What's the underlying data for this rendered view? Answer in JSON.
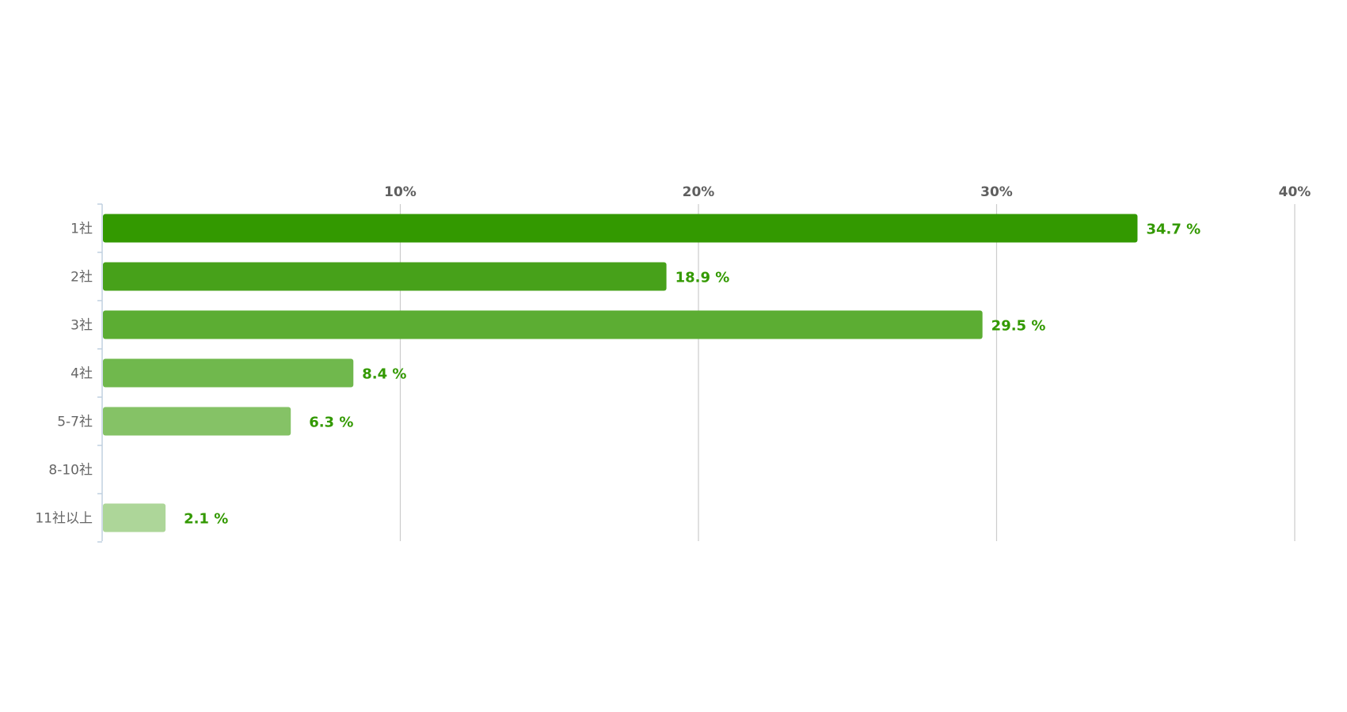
{
  "chart_data": {
    "type": "bar",
    "orientation": "horizontal",
    "categories": [
      "1社",
      "2社",
      "3社",
      "4社",
      "5-7社",
      "8-10社",
      "11社以上"
    ],
    "values": [
      34.7,
      18.9,
      29.5,
      8.4,
      6.3,
      0,
      2.1
    ],
    "value_labels": [
      "34.7 %",
      "18.9 %",
      "29.5 %",
      "8.4 %",
      "6.3 %",
      "",
      "2.1 %"
    ],
    "xlim": [
      0,
      40
    ],
    "x_ticks": [
      10,
      20,
      30,
      40
    ],
    "x_tick_labels": [
      "10%",
      "20%",
      "30%",
      "40%"
    ],
    "x_axis_position": "top",
    "grid": true,
    "legend": false,
    "title": "",
    "xlabel": "",
    "ylabel": "",
    "bar_colors": [
      "#339900",
      "#47a11a",
      "#5cad33",
      "#70b84d",
      "#85c266",
      "#99cc80",
      "#add699"
    ],
    "value_label_color": "#339900",
    "grid_color": "#cccccc",
    "axis_color": "#c0d0e0"
  }
}
